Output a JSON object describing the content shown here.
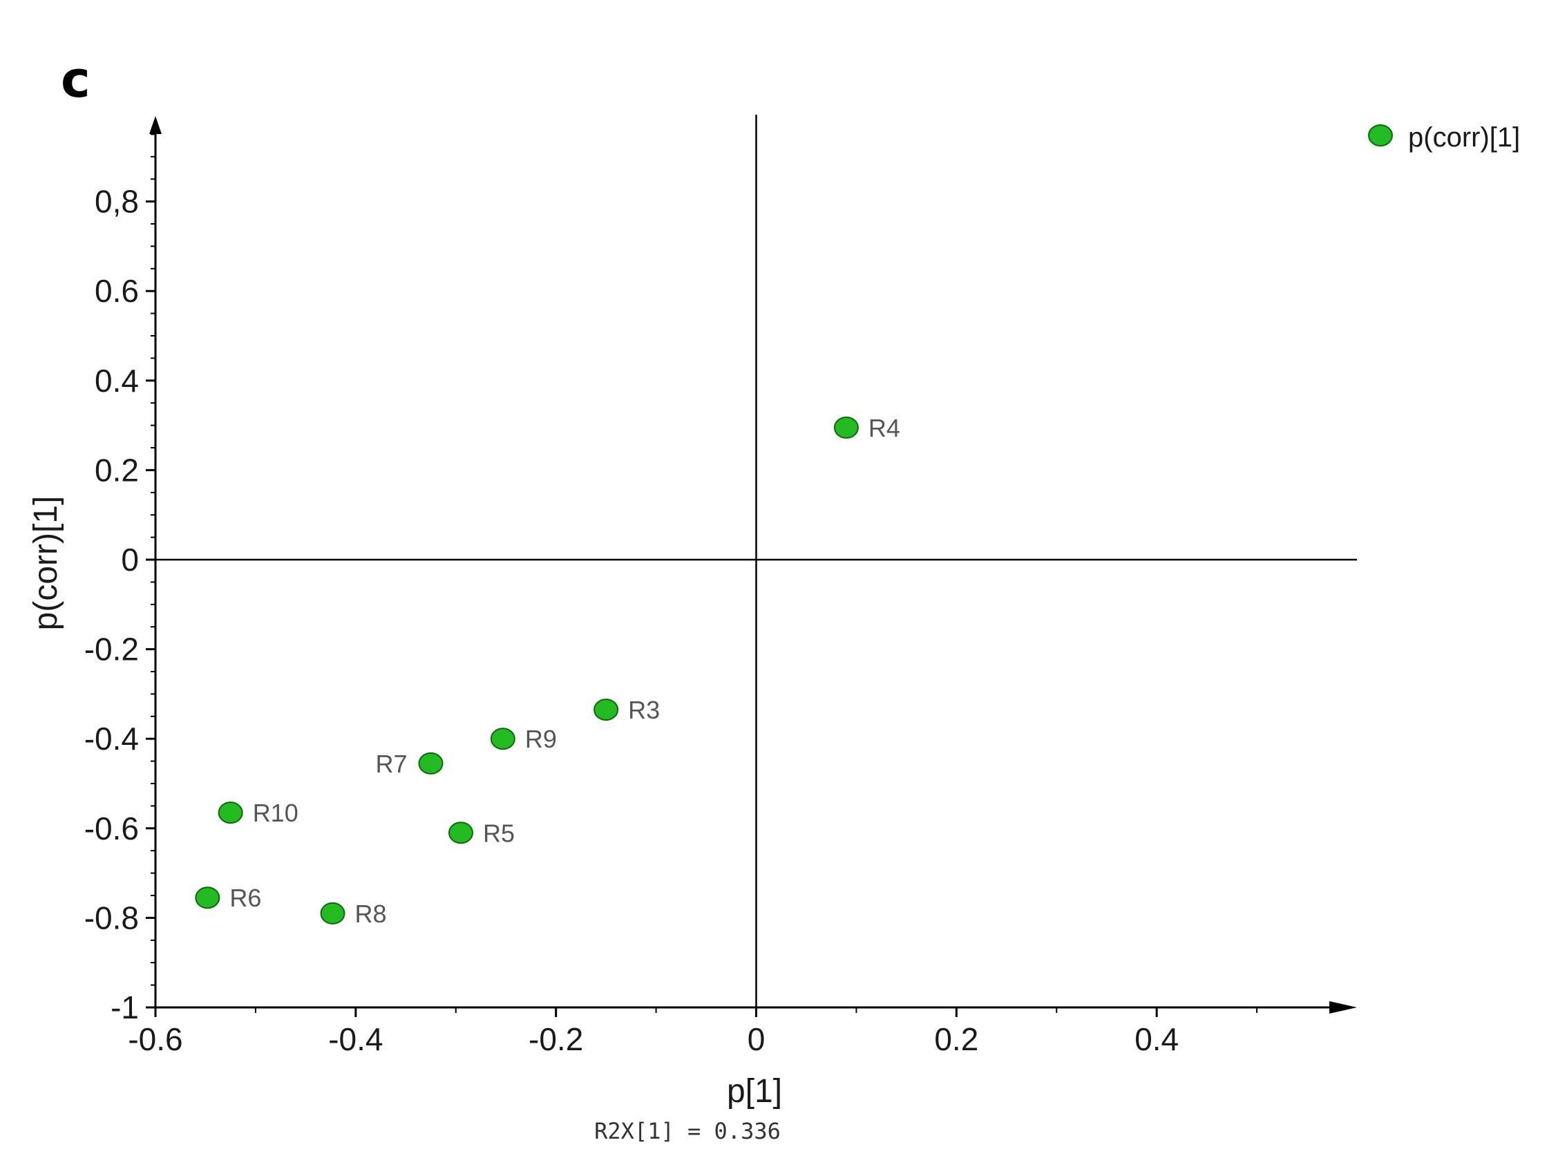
{
  "panel_label": "c",
  "footnote": "R2X[1] = 0.336",
  "chart_data": {
    "type": "scatter",
    "xlabel": "p[1]",
    "ylabel": "p(corr)[1]",
    "xlim": [
      -0.6,
      0.6
    ],
    "ylim": [
      -1,
      0.98
    ],
    "x_ticks": [
      -0.6,
      -0.4,
      -0.2,
      0,
      0.2,
      0.4
    ],
    "x_tick_labels": [
      "-0.6",
      "-0.4",
      "-0.2",
      "0",
      "0.2",
      "0.4"
    ],
    "y_ticks": [
      -1,
      -0.8,
      -0.6,
      -0.4,
      -0.2,
      0,
      0.2,
      0.4,
      0.6,
      0.8
    ],
    "y_tick_labels": [
      "-1",
      "-0.8",
      "-0.6",
      "-0.4",
      "-0.2",
      "0",
      "0.2",
      "0.4",
      "0.6",
      "0,8"
    ],
    "grid": false,
    "legend": {
      "placement": "top-right",
      "entries": [
        "p(corr)[1]"
      ]
    },
    "series": [
      {
        "name": "p(corr)[1]",
        "color": "#22bb22",
        "points": [
          {
            "label": "R4",
            "x": 0.09,
            "y": 0.295
          },
          {
            "label": "R3",
            "x": -0.15,
            "y": -0.335
          },
          {
            "label": "R9",
            "x": -0.253,
            "y": -0.4
          },
          {
            "label": "R7",
            "x": -0.325,
            "y": -0.455
          },
          {
            "label": "R5",
            "x": -0.295,
            "y": -0.61
          },
          {
            "label": "R10",
            "x": -0.525,
            "y": -0.565
          },
          {
            "label": "R6",
            "x": -0.548,
            "y": -0.755
          },
          {
            "label": "R8",
            "x": -0.423,
            "y": -0.79
          }
        ]
      }
    ]
  }
}
